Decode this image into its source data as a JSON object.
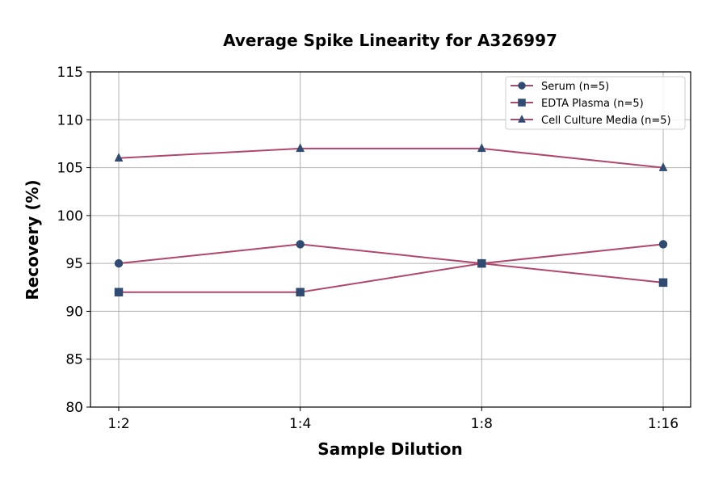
{
  "chart_data": {
    "type": "line",
    "title": "Average Spike Linearity for A326997",
    "xlabel": "Sample Dilution",
    "ylabel": "Recovery (%)",
    "categories": [
      "1:2",
      "1:4",
      "1:8",
      "1:16"
    ],
    "ylim": [
      80,
      115
    ],
    "yticks": [
      80,
      85,
      90,
      95,
      100,
      105,
      110,
      115
    ],
    "grid": true,
    "legend_position": "top-right",
    "line_color": "#b0466e",
    "marker_color": "#2f4b72",
    "series": [
      {
        "name": "Serum (n=5)",
        "marker": "circle",
        "values": [
          95,
          97,
          95,
          97
        ]
      },
      {
        "name": "EDTA Plasma (n=5)",
        "marker": "square",
        "values": [
          92,
          92,
          95,
          93
        ]
      },
      {
        "name": "Cell Culture Media (n=5)",
        "marker": "triangle",
        "values": [
          106,
          107,
          107,
          105
        ]
      }
    ]
  }
}
